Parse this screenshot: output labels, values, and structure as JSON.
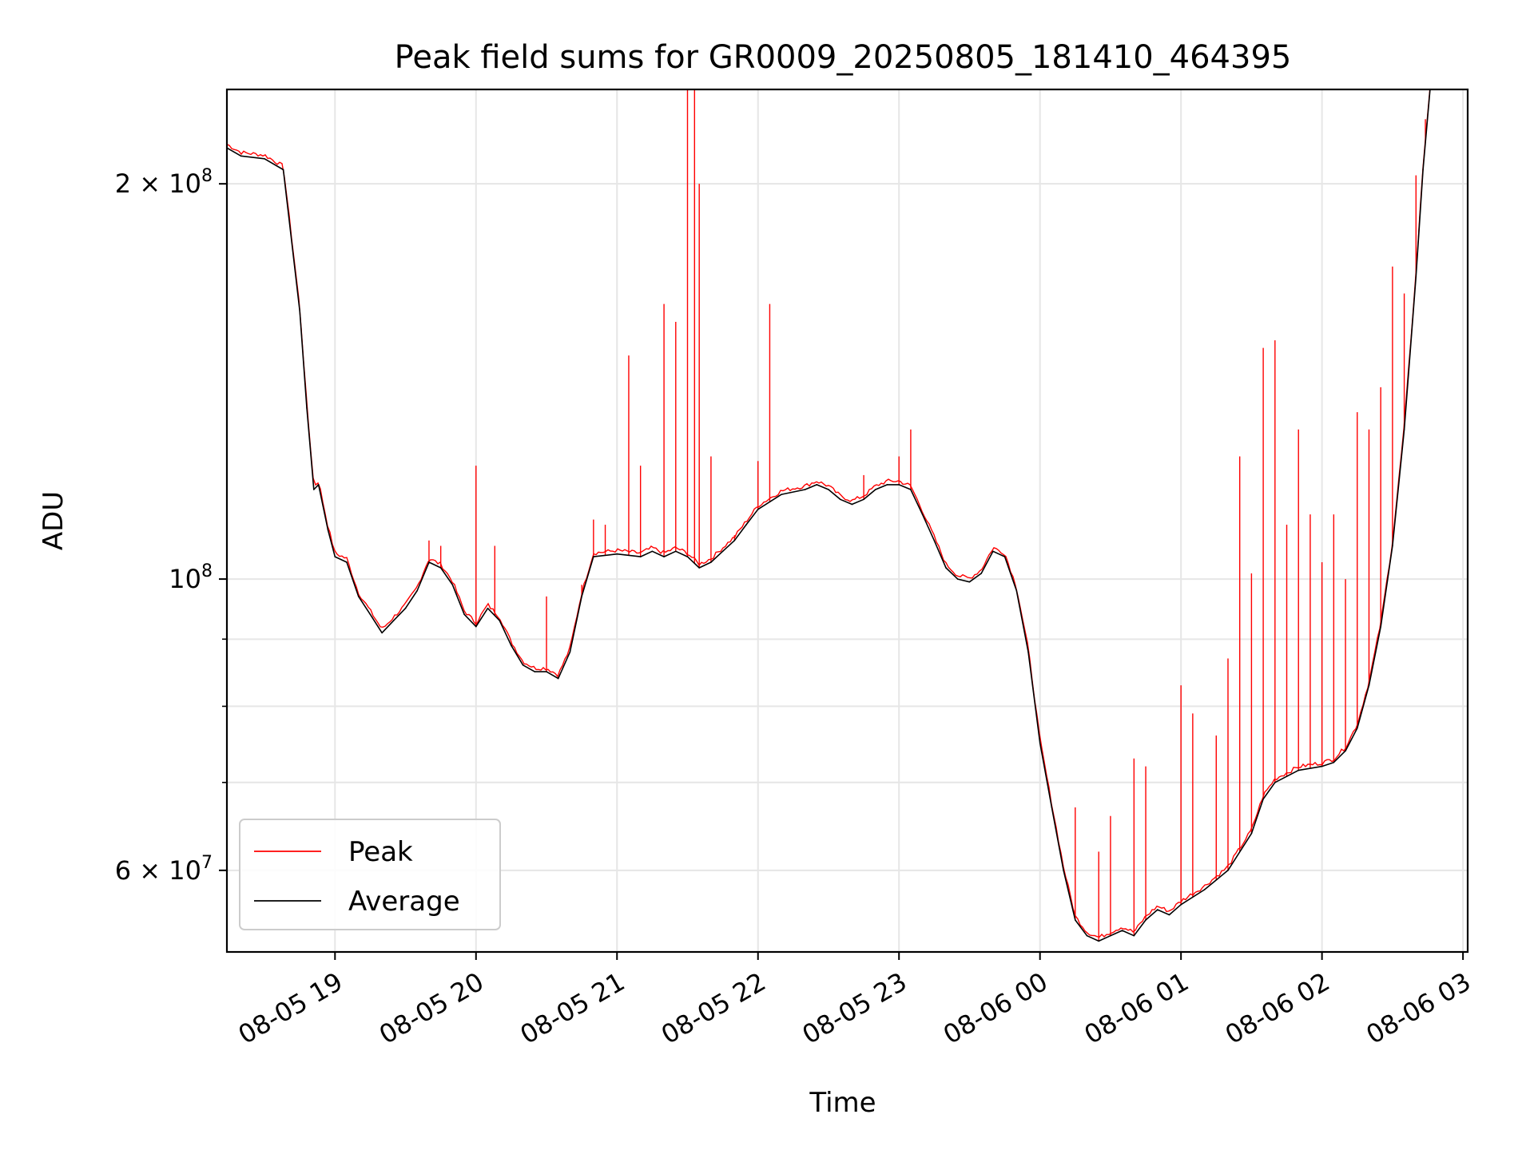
{
  "chart_data": {
    "type": "line",
    "title": "Peak field sums for GR0009_20250805_181410_464395",
    "xlabel": "Time",
    "ylabel": "ADU",
    "yscale": "log",
    "xlim": [
      "2025-08-05 18:14",
      "2025-08-06 03:02"
    ],
    "ylim": [
      52000000,
      236000000
    ],
    "xticks": [
      {
        "t": "2025-08-05 19:00",
        "label": "08-05 19"
      },
      {
        "t": "2025-08-05 20:00",
        "label": "08-05 20"
      },
      {
        "t": "2025-08-05 21:00",
        "label": "08-05 21"
      },
      {
        "t": "2025-08-05 22:00",
        "label": "08-05 22"
      },
      {
        "t": "2025-08-05 23:00",
        "label": "08-05 23"
      },
      {
        "t": "2025-08-06 00:00",
        "label": "08-06 00"
      },
      {
        "t": "2025-08-06 01:00",
        "label": "08-06 01"
      },
      {
        "t": "2025-08-06 02:00",
        "label": "08-06 02"
      },
      {
        "t": "2025-08-06 03:00",
        "label": "08-06 03"
      }
    ],
    "yticks_major": [
      {
        "v": 60000000,
        "base": "6 × 10",
        "exp": "7"
      },
      {
        "v": 100000000,
        "base": "10",
        "exp": "8"
      },
      {
        "v": 200000000,
        "base": "2 × 10",
        "exp": "8"
      }
    ],
    "yticks_minor": [
      70000000,
      80000000,
      90000000
    ],
    "grid": true,
    "legend_position": "lower-left",
    "series": [
      {
        "name": "Average",
        "color": "#000000",
        "points": [
          [
            "2025-08-05 18:14",
            213000000
          ],
          [
            "2025-08-05 18:20",
            210000000
          ],
          [
            "2025-08-05 18:30",
            209000000
          ],
          [
            "2025-08-05 18:38",
            205000000
          ],
          [
            "2025-08-05 18:45",
            160000000
          ],
          [
            "2025-08-05 18:48",
            135000000
          ],
          [
            "2025-08-05 18:51",
            117000000
          ],
          [
            "2025-08-05 18:53",
            118000000
          ],
          [
            "2025-08-05 18:57",
            109000000
          ],
          [
            "2025-08-05 19:00",
            104000000
          ],
          [
            "2025-08-05 19:05",
            103000000
          ],
          [
            "2025-08-05 19:10",
            97000000
          ],
          [
            "2025-08-05 19:15",
            94000000
          ],
          [
            "2025-08-05 19:20",
            91000000
          ],
          [
            "2025-08-05 19:25",
            93000000
          ],
          [
            "2025-08-05 19:30",
            95000000
          ],
          [
            "2025-08-05 19:35",
            98000000
          ],
          [
            "2025-08-05 19:40",
            103000000
          ],
          [
            "2025-08-05 19:45",
            102000000
          ],
          [
            "2025-08-05 19:50",
            99000000
          ],
          [
            "2025-08-05 19:55",
            94000000
          ],
          [
            "2025-08-05 20:00",
            92000000
          ],
          [
            "2025-08-05 20:05",
            95000000
          ],
          [
            "2025-08-05 20:10",
            93000000
          ],
          [
            "2025-08-05 20:15",
            89000000
          ],
          [
            "2025-08-05 20:20",
            86000000
          ],
          [
            "2025-08-05 20:25",
            85000000
          ],
          [
            "2025-08-05 20:30",
            85000000
          ],
          [
            "2025-08-05 20:35",
            84000000
          ],
          [
            "2025-08-05 20:40",
            88000000
          ],
          [
            "2025-08-05 20:45",
            97000000
          ],
          [
            "2025-08-05 20:50",
            104000000
          ],
          [
            "2025-08-05 21:00",
            104500000
          ],
          [
            "2025-08-05 21:10",
            104000000
          ],
          [
            "2025-08-05 21:15",
            105000000
          ],
          [
            "2025-08-05 21:20",
            104000000
          ],
          [
            "2025-08-05 21:25",
            105000000
          ],
          [
            "2025-08-05 21:30",
            104000000
          ],
          [
            "2025-08-05 21:35",
            102000000
          ],
          [
            "2025-08-05 21:40",
            103000000
          ],
          [
            "2025-08-05 21:45",
            105000000
          ],
          [
            "2025-08-05 21:50",
            107000000
          ],
          [
            "2025-08-05 21:55",
            110000000
          ],
          [
            "2025-08-05 22:00",
            113000000
          ],
          [
            "2025-08-05 22:10",
            116000000
          ],
          [
            "2025-08-05 22:20",
            117000000
          ],
          [
            "2025-08-05 22:25",
            118000000
          ],
          [
            "2025-08-05 22:30",
            117000000
          ],
          [
            "2025-08-05 22:35",
            115000000
          ],
          [
            "2025-08-05 22:40",
            114000000
          ],
          [
            "2025-08-05 22:45",
            115000000
          ],
          [
            "2025-08-05 22:50",
            117000000
          ],
          [
            "2025-08-05 22:55",
            118000000
          ],
          [
            "2025-08-05 23:00",
            118000000
          ],
          [
            "2025-08-05 23:05",
            117000000
          ],
          [
            "2025-08-05 23:10",
            112000000
          ],
          [
            "2025-08-05 23:15",
            107000000
          ],
          [
            "2025-08-05 23:20",
            102000000
          ],
          [
            "2025-08-05 23:25",
            100000000
          ],
          [
            "2025-08-05 23:30",
            99500000
          ],
          [
            "2025-08-05 23:35",
            101000000
          ],
          [
            "2025-08-05 23:40",
            105000000
          ],
          [
            "2025-08-05 23:45",
            104000000
          ],
          [
            "2025-08-05 23:50",
            98000000
          ],
          [
            "2025-08-05 23:55",
            88000000
          ],
          [
            "2025-08-06 00:00",
            75000000
          ],
          [
            "2025-08-06 00:05",
            67000000
          ],
          [
            "2025-08-06 00:10",
            60000000
          ],
          [
            "2025-08-06 00:15",
            55000000
          ],
          [
            "2025-08-06 00:20",
            53500000
          ],
          [
            "2025-08-06 00:25",
            53000000
          ],
          [
            "2025-08-06 00:30",
            53500000
          ],
          [
            "2025-08-06 00:35",
            54000000
          ],
          [
            "2025-08-06 00:40",
            53500000
          ],
          [
            "2025-08-06 00:45",
            55000000
          ],
          [
            "2025-08-06 00:50",
            56000000
          ],
          [
            "2025-08-06 00:55",
            55500000
          ],
          [
            "2025-08-06 01:00",
            56500000
          ],
          [
            "2025-08-06 01:10",
            58000000
          ],
          [
            "2025-08-06 01:20",
            60000000
          ],
          [
            "2025-08-06 01:30",
            64000000
          ],
          [
            "2025-08-06 01:35",
            68000000
          ],
          [
            "2025-08-06 01:40",
            70000000
          ],
          [
            "2025-08-06 01:50",
            71500000
          ],
          [
            "2025-08-06 02:00",
            72000000
          ],
          [
            "2025-08-06 02:05",
            72500000
          ],
          [
            "2025-08-06 02:10",
            74000000
          ],
          [
            "2025-08-06 02:15",
            77000000
          ],
          [
            "2025-08-06 02:20",
            83000000
          ],
          [
            "2025-08-06 02:25",
            92000000
          ],
          [
            "2025-08-06 02:30",
            106000000
          ],
          [
            "2025-08-06 02:35",
            130000000
          ],
          [
            "2025-08-06 02:40",
            170000000
          ],
          [
            "2025-08-06 02:43",
            205000000
          ],
          [
            "2025-08-06 02:46",
            236000000
          ],
          [
            "2025-08-06 03:02",
            236000000
          ]
        ]
      },
      {
        "name": "Peak",
        "color": "#ff0000",
        "spikes": [
          [
            "2025-08-05 19:40",
            107000000
          ],
          [
            "2025-08-05 19:45",
            106000000
          ],
          [
            "2025-08-05 20:00",
            122000000
          ],
          [
            "2025-08-05 20:08",
            106000000
          ],
          [
            "2025-08-05 20:30",
            97000000
          ],
          [
            "2025-08-05 20:45",
            99000000
          ],
          [
            "2025-08-05 20:50",
            111000000
          ],
          [
            "2025-08-05 20:55",
            110000000
          ],
          [
            "2025-08-05 21:05",
            148000000
          ],
          [
            "2025-08-05 21:10",
            122000000
          ],
          [
            "2025-08-05 21:20",
            162000000
          ],
          [
            "2025-08-05 21:25",
            157000000
          ],
          [
            "2025-08-05 21:30",
            236000000
          ],
          [
            "2025-08-05 21:33",
            236000000
          ],
          [
            "2025-08-05 21:35",
            200000000
          ],
          [
            "2025-08-05 21:40",
            124000000
          ],
          [
            "2025-08-05 21:50",
            108000000
          ],
          [
            "2025-08-05 22:00",
            123000000
          ],
          [
            "2025-08-05 22:05",
            162000000
          ],
          [
            "2025-08-05 22:45",
            120000000
          ],
          [
            "2025-08-05 23:00",
            124000000
          ],
          [
            "2025-08-05 23:05",
            130000000
          ],
          [
            "2025-08-06 00:15",
            67000000
          ],
          [
            "2025-08-06 00:25",
            62000000
          ],
          [
            "2025-08-06 00:30",
            66000000
          ],
          [
            "2025-08-06 00:40",
            73000000
          ],
          [
            "2025-08-06 00:45",
            72000000
          ],
          [
            "2025-08-06 01:00",
            83000000
          ],
          [
            "2025-08-06 01:05",
            79000000
          ],
          [
            "2025-08-06 01:15",
            76000000
          ],
          [
            "2025-08-06 01:20",
            87000000
          ],
          [
            "2025-08-06 01:25",
            124000000
          ],
          [
            "2025-08-06 01:30",
            101000000
          ],
          [
            "2025-08-06 01:35",
            150000000
          ],
          [
            "2025-08-06 01:40",
            152000000
          ],
          [
            "2025-08-06 01:45",
            110000000
          ],
          [
            "2025-08-06 01:50",
            130000000
          ],
          [
            "2025-08-06 01:55",
            112000000
          ],
          [
            "2025-08-06 02:00",
            103000000
          ],
          [
            "2025-08-06 02:05",
            112000000
          ],
          [
            "2025-08-06 02:10",
            100000000
          ],
          [
            "2025-08-06 02:15",
            134000000
          ],
          [
            "2025-08-06 02:20",
            130000000
          ],
          [
            "2025-08-06 02:25",
            140000000
          ],
          [
            "2025-08-06 02:30",
            173000000
          ],
          [
            "2025-08-06 02:35",
            165000000
          ],
          [
            "2025-08-06 02:40",
            203000000
          ],
          [
            "2025-08-06 02:44",
            224000000
          ]
        ]
      }
    ]
  }
}
